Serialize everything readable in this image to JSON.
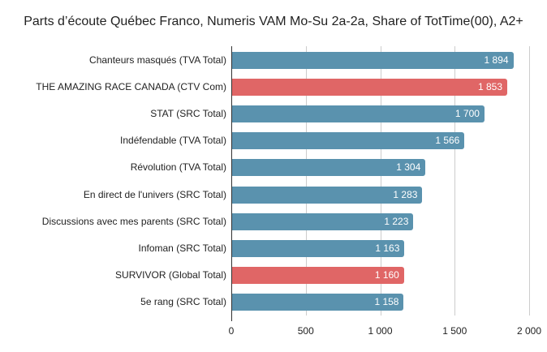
{
  "title": "Parts d’écoute Québec Franco, Numeris VAM Mo-Su 2a-2a, Share of TotTime(00), A2+",
  "colors": {
    "default": "#5a92ae",
    "highlight": "#e06666"
  },
  "ticks": [
    "0",
    "500",
    "1 000",
    "1 500",
    "2 000"
  ],
  "bars": [
    {
      "label": "Chanteurs masqués (TVA Total)",
      "value": 1894,
      "display": "1 894",
      "highlight": false
    },
    {
      "label": "THE AMAZING RACE CANADA (CTV Com)",
      "value": 1853,
      "display": "1 853",
      "highlight": true
    },
    {
      "label": "STAT (SRC Total)",
      "value": 1700,
      "display": "1 700",
      "highlight": false
    },
    {
      "label": "Indéfendable (TVA Total)",
      "value": 1566,
      "display": "1 566",
      "highlight": false
    },
    {
      "label": "Révolution (TVA Total)",
      "value": 1304,
      "display": "1 304",
      "highlight": false
    },
    {
      "label": "En direct de l'univers (SRC Total)",
      "value": 1283,
      "display": "1 283",
      "highlight": false
    },
    {
      "label": "Discussions avec mes parents (SRC Total)",
      "value": 1223,
      "display": "1 223",
      "highlight": false
    },
    {
      "label": "Infoman (SRC Total)",
      "value": 1163,
      "display": "1 163",
      "highlight": false
    },
    {
      "label": "SURVIVOR (Global Total)",
      "value": 1160,
      "display": "1 160",
      "highlight": true
    },
    {
      "label": "5e rang (SRC Total)",
      "value": 1158,
      "display": "1 158",
      "highlight": false
    }
  ],
  "chart_data": {
    "type": "bar",
    "orientation": "horizontal",
    "title": "Parts d’écoute Québec Franco, Numeris VAM Mo-Su 2a-2a, Share of TotTime(00), A2+",
    "categories": [
      "Chanteurs masqués (TVA Total)",
      "THE AMAZING RACE CANADA (CTV Com)",
      "STAT (SRC Total)",
      "Indéfendable (TVA Total)",
      "Révolution (TVA Total)",
      "En direct de l'univers (SRC Total)",
      "Discussions avec mes parents (SRC Total)",
      "Infoman (SRC Total)",
      "SURVIVOR (Global Total)",
      "5e rang (SRC Total)"
    ],
    "values": [
      1894,
      1853,
      1700,
      1566,
      1304,
      1283,
      1223,
      1163,
      1160,
      1158
    ],
    "xlabel": "",
    "ylabel": "",
    "xlim": [
      0,
      2000
    ],
    "xticks": [
      0,
      500,
      1000,
      1500,
      2000
    ],
    "grid": true,
    "legend": null,
    "data_labels": true
  }
}
